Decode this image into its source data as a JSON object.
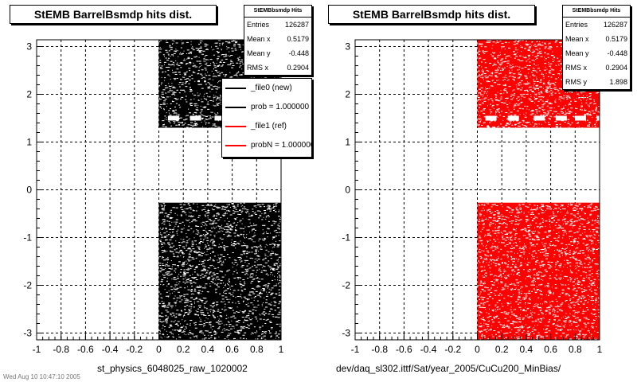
{
  "chart_data": [
    {
      "type": "scatter",
      "title": "StEMB BarrelBsmdp hits dist.",
      "xlabel": "st_physics_6048025_raw_1020002",
      "ylabel": "",
      "xlim": [
        -1,
        1
      ],
      "ylim": [
        -3.1416,
        3.1416
      ],
      "x_ticks": [
        "-1",
        "-0.8",
        "-0.6",
        "-0.4",
        "-0.2",
        "0",
        "0.2",
        "0.4",
        "0.6",
        "0.8",
        "1"
      ],
      "y_ticks": [
        "-3",
        "-2",
        "-1",
        "0",
        "1",
        "2",
        "3"
      ],
      "grid": true,
      "marker_color": "#000000",
      "filled_regions": [
        {
          "x": [
            0,
            1
          ],
          "y": [
            1.3,
            3.1416
          ]
        },
        {
          "x": [
            0,
            1
          ],
          "y": [
            -3.1416,
            -0.27
          ]
        }
      ],
      "stats": {
        "header": "StEMBbsmdp Hits",
        "rows": [
          {
            "label": "Entries",
            "value": "126287"
          },
          {
            "label": "Mean x",
            "value": "0.5179"
          },
          {
            "label": "Mean y",
            "value": "-0.448"
          },
          {
            "label": "RMS x",
            "value": "0.2904"
          }
        ]
      },
      "legend": {
        "placement": "top-right",
        "entries": [
          {
            "label": "_file0 (new)",
            "color": "#000000"
          },
          {
            "label": "prob = 1.000000",
            "color": "#000000"
          },
          {
            "label": "_file1 (ref)",
            "color": "#ff0000"
          },
          {
            "label": "probN = 1.000000",
            "color": "#ff0000"
          }
        ]
      }
    },
    {
      "type": "scatter",
      "title": "StEMB BarrelBsmdp hits dist.",
      "xlabel": "dev/daq_sl302.ittf/Sat/year_2005/CuCu200_MinBias/",
      "ylabel": "",
      "xlim": [
        -1,
        1
      ],
      "ylim": [
        -3.1416,
        3.1416
      ],
      "x_ticks": [
        "-1",
        "-0.8",
        "-0.6",
        "-0.4",
        "-0.2",
        "0",
        "0.2",
        "0.4",
        "0.6",
        "0.8",
        "1"
      ],
      "y_ticks": [
        "-3",
        "-2",
        "-1",
        "0",
        "1",
        "2",
        "3"
      ],
      "grid": true,
      "marker_color": "#ff0000",
      "filled_regions": [
        {
          "x": [
            0,
            1
          ],
          "y": [
            1.3,
            3.1416
          ]
        },
        {
          "x": [
            0,
            1
          ],
          "y": [
            -3.1416,
            -0.27
          ]
        }
      ],
      "stats": {
        "header": "StEMBbsmdp Hits",
        "rows": [
          {
            "label": "Entries",
            "value": "126287"
          },
          {
            "label": "Mean x",
            "value": "0.5179"
          },
          {
            "label": "Mean y",
            "value": "-0.448"
          },
          {
            "label": "RMS x",
            "value": "0.2904"
          },
          {
            "label": "RMS y",
            "value": "1.898"
          }
        ]
      }
    }
  ],
  "footer": {
    "timestamp": "Wed Aug 10 10:47:10 2005"
  }
}
